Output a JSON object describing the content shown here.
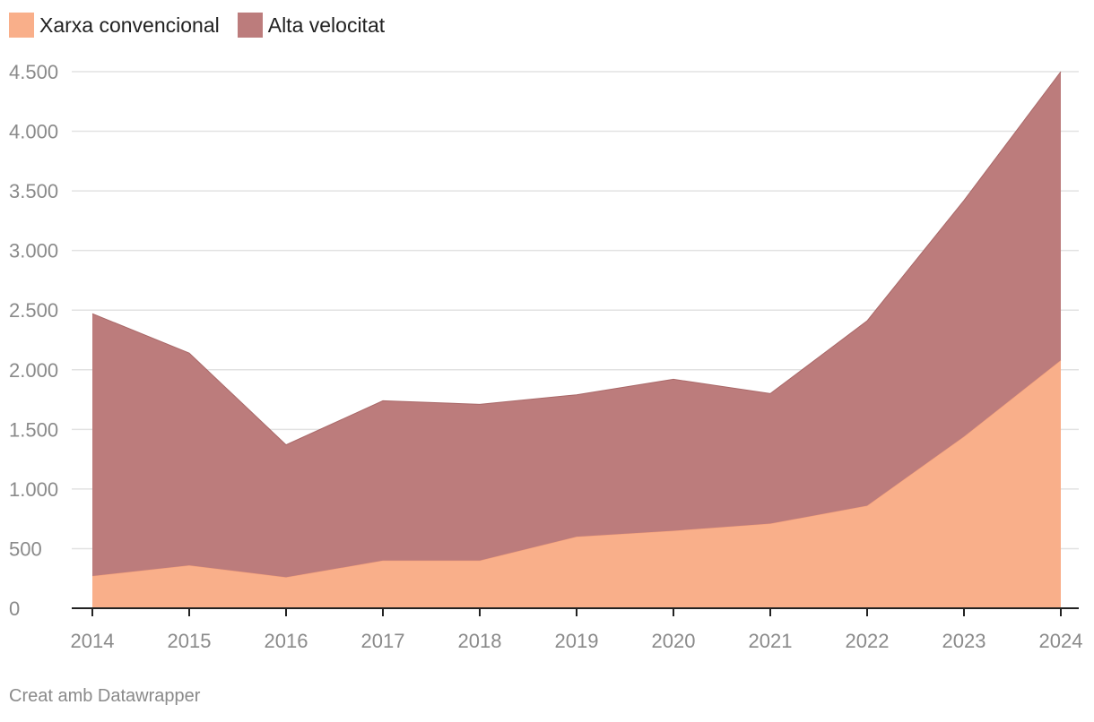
{
  "legend": {
    "items": [
      {
        "label": "Xarxa convencional",
        "color": "#f9af8a"
      },
      {
        "label": "Alta velocitat",
        "color": "#bc7c7c"
      }
    ]
  },
  "footer": {
    "credit": "Creat amb Datawrapper"
  },
  "chart_data": {
    "type": "area",
    "stacked": true,
    "title": "",
    "xlabel": "",
    "ylabel": "",
    "x": [
      "2014",
      "2015",
      "2016",
      "2017",
      "2018",
      "2019",
      "2020",
      "2021",
      "2022",
      "2023",
      "2024"
    ],
    "series": [
      {
        "name": "Xarxa convencional",
        "color": "#f9af8a",
        "values": [
          270,
          360,
          260,
          400,
          400,
          600,
          650,
          710,
          860,
          1440,
          2080
        ]
      },
      {
        "name": "Alta velocitat",
        "color": "#bc7c7c",
        "values": [
          2200,
          1780,
          1110,
          1340,
          1310,
          1190,
          1270,
          1090,
          1550,
          1980,
          2420
        ]
      }
    ],
    "ylim": [
      0,
      4500
    ],
    "yticks": [
      0,
      500,
      1000,
      1500,
      2000,
      2500,
      3000,
      3500,
      4000,
      4500
    ],
    "ytick_labels": [
      "0",
      "500",
      "1.000",
      "1.500",
      "2.000",
      "2.500",
      "3.000",
      "3.500",
      "4.000",
      "4.500"
    ],
    "grid": true,
    "legend_position": "top-left"
  }
}
